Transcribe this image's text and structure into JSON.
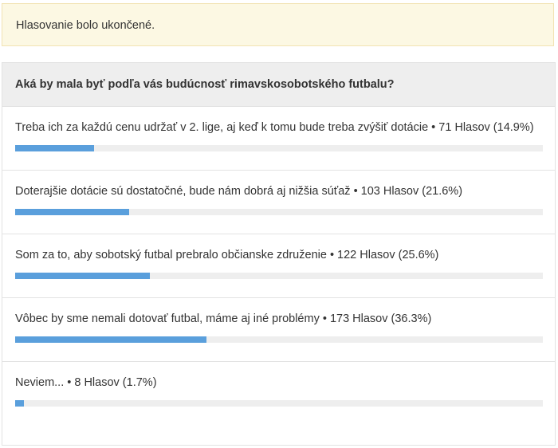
{
  "notice": {
    "text": "Hlasovanie bolo ukončené."
  },
  "poll": {
    "question": "Aká by mala byť podľa vás budúcnosť rimavskosobotského futbalu?",
    "bar_color": "#5a9fdc",
    "options": [
      {
        "label": "Treba ich za každú cenu udržať v 2. lige, aj keď k tomu bude treba zvýšiť dotácie • 71 Hlasov (14.9%)",
        "votes": 71,
        "percent": 14.9
      },
      {
        "label": "Doterajšie dotácie sú dostatočné, bude nám dobrá aj nižšia súťaž • 103 Hlasov (21.6%)",
        "votes": 103,
        "percent": 21.6
      },
      {
        "label": "Som za to, aby sobotský futbal prebralo občianske združenie • 122 Hlasov (25.6%)",
        "votes": 122,
        "percent": 25.6
      },
      {
        "label": "Vôbec by sme nemali dotovať futbal, máme aj iné problémy • 173 Hlasov (36.3%)",
        "votes": 173,
        "percent": 36.3
      },
      {
        "label": "Neviem... • 8 Hlasov (1.7%)",
        "votes": 8,
        "percent": 1.7
      }
    ]
  }
}
